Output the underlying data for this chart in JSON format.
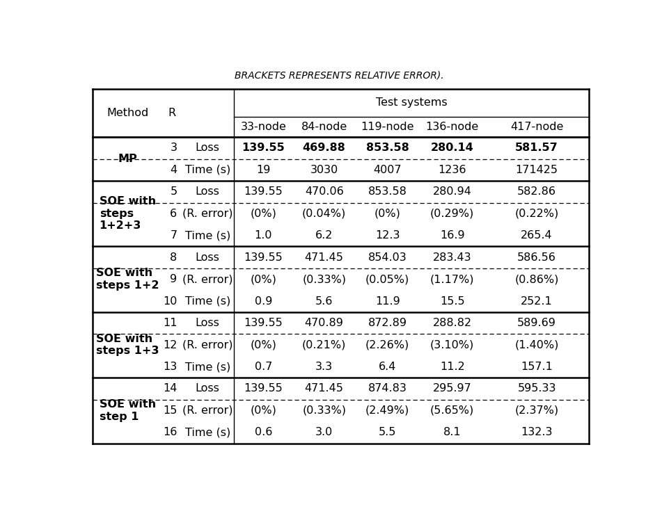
{
  "title_top": "BRACKETS REPRESENTS RELATIVE ERROR).",
  "node_labels": [
    "33-node",
    "84-node",
    "119-node",
    "136-node",
    "417-node"
  ],
  "rows": [
    {
      "method": "MP",
      "r": "3",
      "label": "Loss",
      "vals": [
        "139.55",
        "469.88",
        "853.58",
        "280.14",
        "581.57"
      ],
      "bold_vals": true,
      "bold_label": false
    },
    {
      "method": "",
      "r": "4",
      "label": "Time (s)",
      "vals": [
        "19",
        "3030",
        "4007",
        "1236",
        "171425"
      ],
      "bold_vals": false,
      "bold_label": false
    },
    {
      "method": "SOE with\nsteps\n1+2+3",
      "r": "5",
      "label": "Loss",
      "vals": [
        "139.55",
        "470.06",
        "853.58",
        "280.94",
        "582.86"
      ],
      "bold_vals": false,
      "bold_label": false
    },
    {
      "method": "",
      "r": "6",
      "label": "(R. error)",
      "vals": [
        "(0%)",
        "(0.04%)",
        "(0%)",
        "(0.29%)",
        "(0.22%)"
      ],
      "bold_vals": false,
      "bold_label": false
    },
    {
      "method": "",
      "r": "7",
      "label": "Time (s)",
      "vals": [
        "1.0",
        "6.2",
        "12.3",
        "16.9",
        "265.4"
      ],
      "bold_vals": false,
      "bold_label": false
    },
    {
      "method": "SOE with\nsteps 1+2",
      "r": "8",
      "label": "Loss",
      "vals": [
        "139.55",
        "471.45",
        "854.03",
        "283.43",
        "586.56"
      ],
      "bold_vals": false,
      "bold_label": false
    },
    {
      "method": "",
      "r": "9",
      "label": "(R. error)",
      "vals": [
        "(0%)",
        "(0.33%)",
        "(0.05%)",
        "(1.17%)",
        "(0.86%)"
      ],
      "bold_vals": false,
      "bold_label": false
    },
    {
      "method": "",
      "r": "10",
      "label": "Time (s)",
      "vals": [
        "0.9",
        "5.6",
        "11.9",
        "15.5",
        "252.1"
      ],
      "bold_vals": false,
      "bold_label": false
    },
    {
      "method": "SOE with\nsteps 1+3",
      "r": "11",
      "label": "Loss",
      "vals": [
        "139.55",
        "470.89",
        "872.89",
        "288.82",
        "589.69"
      ],
      "bold_vals": false,
      "bold_label": false
    },
    {
      "method": "",
      "r": "12",
      "label": "(R. error)",
      "vals": [
        "(0%)",
        "(0.21%)",
        "(2.26%)",
        "(3.10%)",
        "(1.40%)"
      ],
      "bold_vals": false,
      "bold_label": false
    },
    {
      "method": "",
      "r": "13",
      "label": "Time (s)",
      "vals": [
        "0.7",
        "3.3",
        "6.4",
        "11.2",
        "157.1"
      ],
      "bold_vals": false,
      "bold_label": false
    },
    {
      "method": "SOE with\nstep 1",
      "r": "14",
      "label": "Loss",
      "vals": [
        "139.55",
        "471.45",
        "874.83",
        "295.97",
        "595.33"
      ],
      "bold_vals": false,
      "bold_label": false
    },
    {
      "method": "",
      "r": "15",
      "label": "(R. error)",
      "vals": [
        "(0%)",
        "(0.33%)",
        "(2.49%)",
        "(5.65%)",
        "(2.37%)"
      ],
      "bold_vals": false,
      "bold_label": false
    },
    {
      "method": "",
      "r": "16",
      "label": "Time (s)",
      "vals": [
        "0.6",
        "3.0",
        "5.5",
        "8.1",
        "132.3"
      ],
      "bold_vals": false,
      "bold_label": false
    }
  ],
  "group_method_spans": [
    {
      "start": 0,
      "end": 1,
      "label": "MP"
    },
    {
      "start": 2,
      "end": 4,
      "label": "SOE with\nsteps\n1+2+3"
    },
    {
      "start": 5,
      "end": 7,
      "label": "SOE with\nsteps 1+2"
    },
    {
      "start": 8,
      "end": 10,
      "label": "SOE with\nsteps 1+3"
    },
    {
      "start": 11,
      "end": 13,
      "label": "SOE with\nstep 1"
    }
  ],
  "dashed_after_rows": [
    0,
    2,
    5,
    8,
    11
  ],
  "solid_after_rows": [
    1,
    4,
    7,
    10
  ],
  "background_color": "#ffffff",
  "text_color": "#000000",
  "font_size": 11.5
}
